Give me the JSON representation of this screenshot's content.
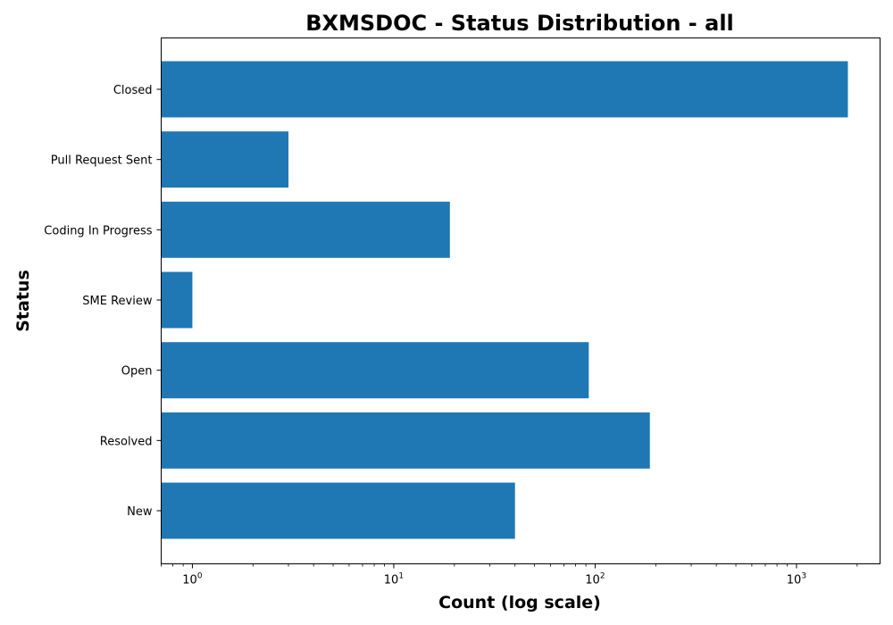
{
  "chart_data": {
    "type": "bar",
    "orientation": "horizontal",
    "title": "BXMSDOC - Status Distribution - all",
    "xlabel": "Count (log scale)",
    "ylabel": "Status",
    "x_scale": "log",
    "xlim": [
      0.7,
      2600
    ],
    "x_ticks": [
      {
        "value": 1,
        "base": "10",
        "exp": "0"
      },
      {
        "value": 10,
        "base": "10",
        "exp": "1"
      },
      {
        "value": 100,
        "base": "10",
        "exp": "2"
      },
      {
        "value": 1000,
        "base": "10",
        "exp": "3"
      }
    ],
    "categories": [
      "Closed",
      "Pull Request Sent",
      "Coding In Progress",
      "SME Review",
      "Open",
      "Resolved",
      "New"
    ],
    "values": [
      1800,
      3,
      19,
      1,
      93,
      187,
      40
    ],
    "bar_color": "#1f77b4",
    "grid": false,
    "legend": "none"
  }
}
